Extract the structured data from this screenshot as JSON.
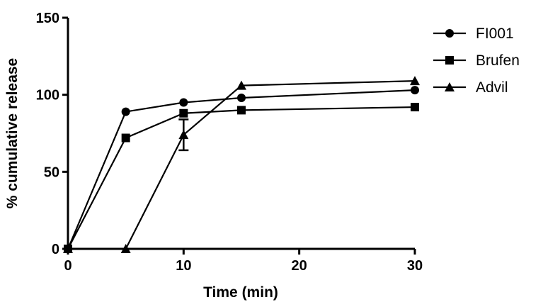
{
  "chart_data": {
    "type": "line",
    "xlabel": "Time (min)",
    "ylabel": "% cumulative release",
    "xlim": [
      0,
      30
    ],
    "ylim": [
      0,
      150
    ],
    "x_ticks": [
      0,
      10,
      20,
      30
    ],
    "x_tick_labels": [
      "0",
      "10",
      "20",
      "30"
    ],
    "y_ticks": [
      0,
      50,
      100,
      150
    ],
    "y_tick_labels": [
      "0",
      "50",
      "100",
      "150"
    ],
    "grid": false,
    "legend_position": "top-right",
    "series": [
      {
        "name": "FI001",
        "marker": "circle",
        "x": [
          0,
          5,
          10,
          15,
          30
        ],
        "y": [
          0,
          89,
          95,
          98,
          103
        ]
      },
      {
        "name": "Brufen",
        "marker": "square",
        "x": [
          0,
          5,
          10,
          15,
          30
        ],
        "y": [
          0,
          72,
          88,
          90,
          92
        ]
      },
      {
        "name": "Advil",
        "marker": "triangle",
        "x": [
          0,
          5,
          10,
          15,
          30
        ],
        "y": [
          0,
          0,
          74,
          106,
          109
        ],
        "error": [
          0,
          0,
          10,
          0,
          0
        ]
      }
    ]
  }
}
